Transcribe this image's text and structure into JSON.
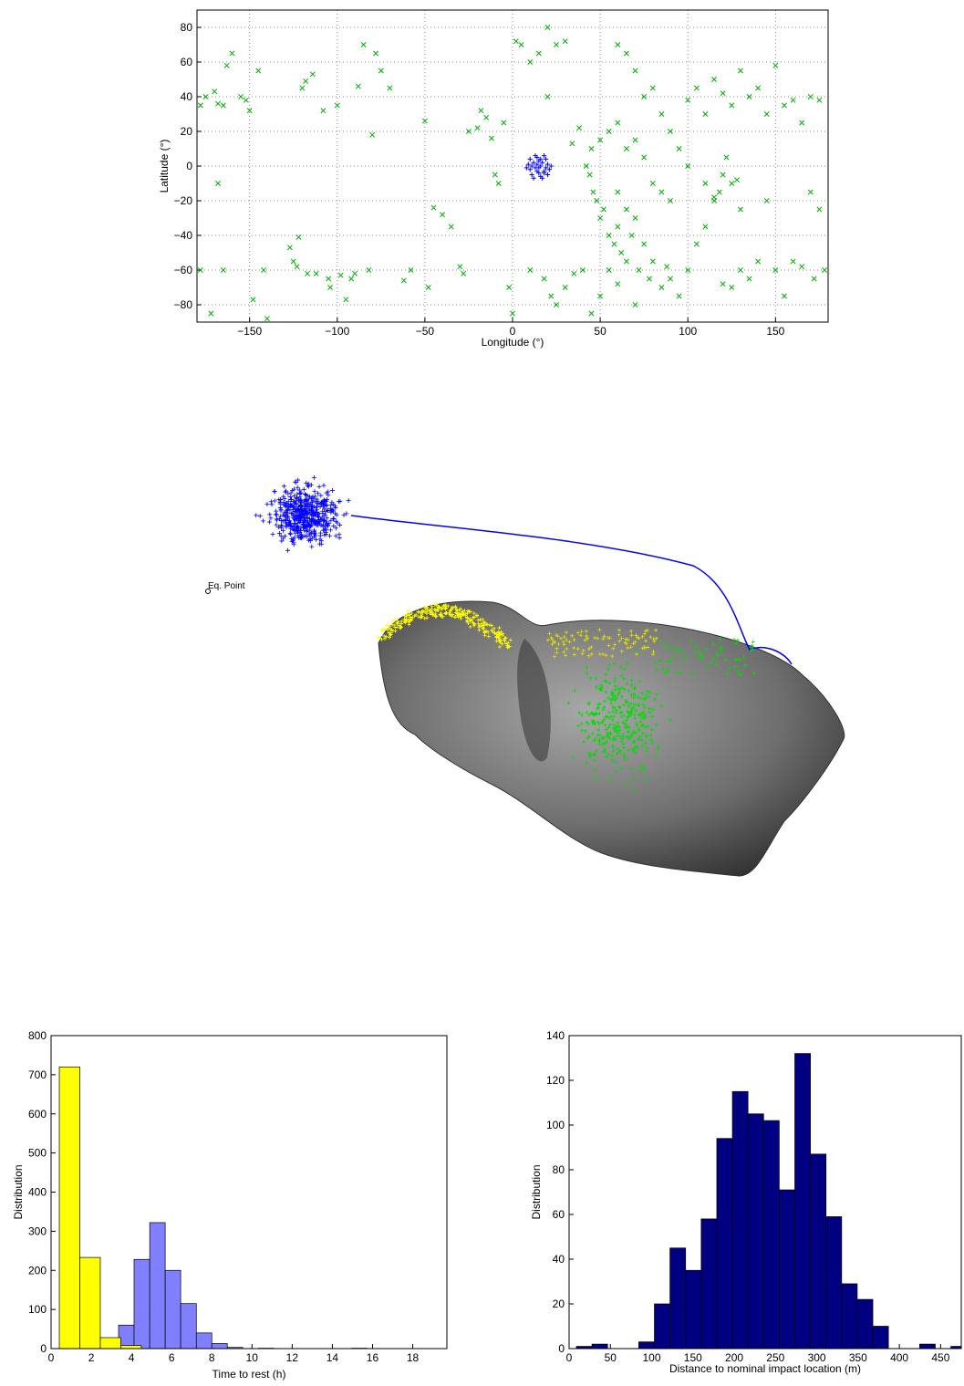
{
  "chart_data": [
    {
      "type": "scatter",
      "xlabel": "Longitude (°)",
      "ylabel": "Latitude (°)",
      "xlim": [
        -180,
        180
      ],
      "ylim": [
        -90,
        90
      ],
      "grid": true,
      "xticks": [
        {
          "value": -150,
          "label": "−150"
        },
        {
          "value": -100,
          "label": "−100"
        },
        {
          "value": -50,
          "label": "−50"
        },
        0,
        50,
        100,
        150
      ],
      "yticks": [
        {
          "value": -80,
          "label": "−80"
        },
        {
          "value": -60,
          "label": "−60"
        },
        {
          "value": -40,
          "label": "−40"
        },
        {
          "value": -20,
          "label": "−20"
        },
        0,
        20,
        40,
        60,
        80
      ],
      "series": [
        {
          "color": "#00b000",
          "marker": "x",
          "x": [
            -178,
            -175,
            -170,
            -168,
            -165,
            -163,
            -160,
            -155,
            -152,
            -150,
            -148,
            -145,
            -142,
            -140,
            -165,
            -178,
            -172,
            -168,
            -127,
            -125,
            -123,
            -122,
            -120,
            -118,
            -117,
            -114,
            -112,
            -108,
            -105,
            -104,
            -100,
            -98,
            -95,
            -92,
            -90,
            -88,
            -85,
            -82,
            -80,
            -78,
            -75,
            -70,
            -62,
            -58,
            -50,
            -48,
            -45,
            -40,
            -35,
            -30,
            -28,
            -25,
            -20,
            -18,
            -15,
            -12,
            -10,
            -8,
            -5,
            -2,
            2,
            5,
            10,
            15,
            20,
            20,
            25,
            30,
            34,
            38,
            42,
            44,
            46,
            48,
            50,
            52,
            55,
            58,
            60,
            62,
            65,
            68,
            70,
            72,
            75,
            78,
            80,
            85,
            88,
            90,
            95,
            100,
            105,
            110,
            115,
            118,
            120,
            122,
            125,
            128,
            130,
            115,
            110,
            100,
            95,
            90,
            85,
            80,
            75,
            70,
            65,
            60,
            100,
            105,
            110,
            115,
            120,
            125,
            130,
            135,
            140,
            145,
            150,
            155,
            160,
            165,
            170,
            175,
            172,
            165,
            160,
            155,
            150,
            145,
            140,
            135,
            130,
            125,
            120,
            175,
            178,
            170,
            45,
            50,
            55,
            60,
            65,
            70,
            75,
            80,
            85,
            90,
            65,
            60,
            55,
            50,
            40,
            35,
            30,
            25,
            18,
            10,
            0,
            22,
            45,
            70,
            60
          ],
          "y": [
            35,
            40,
            43,
            36,
            35,
            58,
            65,
            40,
            38,
            32,
            -77,
            55,
            -60,
            -88,
            -60,
            -60,
            -85,
            -10,
            -47,
            -55,
            -58,
            -41,
            45,
            49,
            -62,
            53,
            -62,
            32,
            -65,
            -70,
            35,
            -63,
            -77,
            -65,
            -62,
            46,
            70,
            -60,
            18,
            65,
            55,
            45,
            -66,
            -60,
            26,
            -70,
            -24,
            -28,
            -35,
            -58,
            -62,
            20,
            22,
            32,
            28,
            16,
            -5,
            -10,
            25,
            -70,
            72,
            70,
            60,
            65,
            40,
            80,
            70,
            72,
            13,
            22,
            0,
            -5,
            -15,
            -20,
            -30,
            -25,
            -40,
            -45,
            -35,
            -50,
            -55,
            -40,
            -30,
            -60,
            -45,
            -65,
            -55,
            -70,
            -58,
            -65,
            -75,
            -60,
            -45,
            -35,
            -20,
            -15,
            -5,
            5,
            -10,
            -8,
            -25,
            -18,
            -10,
            0,
            10,
            20,
            30,
            45,
            40,
            55,
            65,
            70,
            38,
            45,
            30,
            50,
            42,
            35,
            55,
            40,
            45,
            30,
            58,
            35,
            38,
            25,
            40,
            38,
            -65,
            -58,
            -55,
            -75,
            -60,
            -20,
            -55,
            -65,
            -60,
            -70,
            -68,
            -25,
            -60,
            -15,
            10,
            15,
            20,
            25,
            10,
            15,
            5,
            -10,
            -15,
            -20,
            -25,
            -15,
            -60,
            -75,
            -60,
            -62,
            -70,
            -80,
            -65,
            -60,
            -85,
            -75,
            -85,
            -80,
            -68
          ]
        },
        {
          "color": "#0000ff",
          "marker": "+",
          "x": [
            15,
            12,
            18,
            10,
            20,
            14,
            16,
            11,
            19,
            13,
            17,
            9,
            21,
            15,
            12,
            18,
            16,
            14,
            20,
            10,
            15,
            13,
            17,
            22,
            8,
            19,
            11,
            16,
            14,
            18
          ],
          "y": [
            -1,
            2,
            -3,
            -2,
            1,
            5,
            -6,
            -5,
            4,
            -1,
            2,
            1,
            -2,
            -4,
            -7,
            6,
            0,
            -3,
            -5,
            4,
            3,
            6,
            -7,
            0,
            -1,
            -1,
            0,
            4,
            1,
            -4
          ]
        }
      ]
    },
    {
      "type": "histogram",
      "xlabel": "Time to rest (h)",
      "ylabel": "Distribution",
      "xlim": [
        0,
        19.7
      ],
      "ylim": [
        0,
        800
      ],
      "grid": false,
      "xticks": [
        0,
        2,
        4,
        6,
        8,
        10,
        12,
        14,
        16,
        18
      ],
      "yticks": [
        0,
        100,
        200,
        300,
        400,
        500,
        600,
        700,
        800
      ],
      "series": [
        {
          "color": "#8080ff",
          "bins": [
            3.36,
            4.13,
            4.91,
            5.68,
            6.45,
            7.23,
            8.0,
            8.77,
            9.54,
            10.32,
            11.09,
            11.86,
            12.64,
            13.41,
            14.18,
            14.96,
            15.73,
            16.5
          ],
          "values": [
            60,
            228,
            322,
            200,
            115,
            40,
            13,
            3,
            0,
            1,
            0,
            0,
            0,
            0,
            0,
            1,
            0
          ]
        },
        {
          "color": "#ffff00",
          "bins": [
            0.41,
            1.43,
            2.45,
            3.47,
            4.49
          ],
          "values": [
            720,
            233,
            28,
            8
          ]
        }
      ]
    },
    {
      "type": "histogram",
      "xlabel": "Distance to nominal impact location (m)",
      "ylabel": "Distribution",
      "xlim": [
        0,
        475
      ],
      "ylim": [
        0,
        140
      ],
      "grid": false,
      "xticks": [
        0,
        50,
        100,
        150,
        200,
        250,
        300,
        350,
        400,
        450
      ],
      "yticks": [
        0,
        20,
        40,
        60,
        80,
        100,
        120,
        140
      ],
      "series": [
        {
          "color": "#000080",
          "bins": [
            8.8,
            27.7,
            46.6,
            65.5,
            84.4,
            103.3,
            122.2,
            141.1,
            160,
            178.9,
            197.8,
            216.7,
            235.6,
            254.5,
            273.4,
            292.3,
            311.2,
            330.1,
            349,
            367.9,
            386.8,
            405.7,
            424.6,
            443.5,
            462.4,
            481.3
          ],
          "values": [
            1,
            2,
            0,
            0,
            3,
            20,
            45,
            35,
            58,
            94,
            115,
            105,
            102,
            71,
            132,
            87,
            59,
            29,
            22,
            10,
            0,
            0,
            2,
            0,
            1
          ]
        }
      ]
    }
  ],
  "illustration": {
    "annotation": "Eq. Point"
  }
}
